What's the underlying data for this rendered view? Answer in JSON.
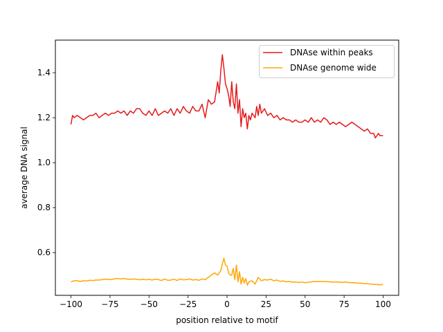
{
  "chart_data": {
    "type": "line",
    "title": "",
    "xlabel": "position relative to motif",
    "ylabel": "average DNA signal",
    "xlim": [
      -110,
      110
    ],
    "ylim": [
      0.41,
      1.545
    ],
    "x_ticks": [
      -100,
      -75,
      -50,
      -25,
      0,
      25,
      50,
      75,
      100
    ],
    "x_tick_labels": [
      "−100",
      "−75",
      "−50",
      "−25",
      "0",
      "25",
      "50",
      "75",
      "100"
    ],
    "y_ticks": [
      0.6,
      0.8,
      1.0,
      1.2,
      1.4
    ],
    "y_tick_labels": [
      "0.6",
      "0.8",
      "1.0",
      "1.2",
      "1.4"
    ],
    "grid": false,
    "legend_position": "top-right",
    "series": [
      {
        "name": "DNAse within peaks",
        "color": "#e41a1c",
        "x": [
          -100,
          -99,
          -98,
          -96,
          -94,
          -92,
          -90,
          -88,
          -86,
          -84,
          -82,
          -80,
          -78,
          -76,
          -74,
          -72,
          -70,
          -68,
          -66,
          -64,
          -62,
          -60,
          -58,
          -56,
          -54,
          -52,
          -50,
          -48,
          -46,
          -44,
          -42,
          -40,
          -38,
          -36,
          -34,
          -32,
          -30,
          -28,
          -26,
          -24,
          -22,
          -20,
          -18,
          -16,
          -14,
          -12,
          -10,
          -8,
          -6,
          -5,
          -4,
          -3,
          -2,
          -1,
          0,
          1,
          2,
          3,
          4,
          5,
          6,
          7,
          8,
          9,
          10,
          11,
          12,
          13,
          14,
          15,
          16,
          17,
          18,
          19,
          20,
          21,
          22,
          24,
          26,
          28,
          30,
          32,
          34,
          36,
          38,
          40,
          42,
          44,
          46,
          48,
          50,
          52,
          54,
          56,
          58,
          60,
          62,
          64,
          66,
          68,
          70,
          72,
          74,
          76,
          78,
          80,
          82,
          84,
          86,
          88,
          90,
          92,
          94,
          95,
          96,
          97,
          98,
          99,
          100
        ],
        "values": [
          1.17,
          1.21,
          1.2,
          1.21,
          1.2,
          1.19,
          1.2,
          1.21,
          1.21,
          1.22,
          1.2,
          1.21,
          1.22,
          1.21,
          1.22,
          1.22,
          1.23,
          1.22,
          1.23,
          1.21,
          1.23,
          1.22,
          1.24,
          1.24,
          1.22,
          1.21,
          1.23,
          1.21,
          1.24,
          1.21,
          1.22,
          1.23,
          1.22,
          1.24,
          1.21,
          1.24,
          1.22,
          1.25,
          1.23,
          1.22,
          1.25,
          1.23,
          1.23,
          1.26,
          1.2,
          1.28,
          1.26,
          1.27,
          1.36,
          1.31,
          1.41,
          1.48,
          1.42,
          1.35,
          1.33,
          1.3,
          1.25,
          1.36,
          1.27,
          1.24,
          1.35,
          1.22,
          1.28,
          1.16,
          1.24,
          1.2,
          1.22,
          1.15,
          1.21,
          1.19,
          1.22,
          1.21,
          1.2,
          1.25,
          1.21,
          1.26,
          1.22,
          1.24,
          1.21,
          1.22,
          1.2,
          1.21,
          1.19,
          1.2,
          1.19,
          1.19,
          1.18,
          1.19,
          1.18,
          1.18,
          1.19,
          1.18,
          1.2,
          1.18,
          1.19,
          1.18,
          1.2,
          1.19,
          1.17,
          1.18,
          1.17,
          1.18,
          1.17,
          1.16,
          1.17,
          1.18,
          1.17,
          1.16,
          1.15,
          1.14,
          1.15,
          1.13,
          1.13,
          1.11,
          1.12,
          1.13,
          1.12,
          1.12,
          1.12
        ]
      },
      {
        "name": "DNAse genome wide",
        "color": "#ffa500",
        "x": [
          -100,
          -98,
          -96,
          -94,
          -92,
          -90,
          -88,
          -86,
          -84,
          -82,
          -80,
          -78,
          -76,
          -74,
          -72,
          -70,
          -68,
          -66,
          -64,
          -62,
          -60,
          -58,
          -56,
          -54,
          -52,
          -50,
          -48,
          -46,
          -44,
          -42,
          -40,
          -38,
          -36,
          -34,
          -32,
          -30,
          -28,
          -26,
          -24,
          -22,
          -20,
          -18,
          -16,
          -14,
          -12,
          -10,
          -8,
          -6,
          -4,
          -3,
          -2,
          -1,
          0,
          1,
          2,
          3,
          4,
          5,
          6,
          7,
          8,
          9,
          10,
          11,
          12,
          13,
          14,
          16,
          18,
          20,
          22,
          24,
          26,
          28,
          30,
          32,
          34,
          36,
          38,
          40,
          42,
          44,
          46,
          48,
          50,
          52,
          54,
          56,
          58,
          60,
          62,
          64,
          66,
          68,
          70,
          72,
          74,
          76,
          78,
          80,
          82,
          84,
          86,
          88,
          90,
          92,
          94,
          96,
          98,
          100
        ],
        "values": [
          0.47,
          0.475,
          0.475,
          0.472,
          0.475,
          0.474,
          0.477,
          0.476,
          0.478,
          0.478,
          0.48,
          0.482,
          0.481,
          0.48,
          0.484,
          0.485,
          0.483,
          0.485,
          0.482,
          0.481,
          0.483,
          0.481,
          0.479,
          0.482,
          0.479,
          0.481,
          0.478,
          0.482,
          0.48,
          0.476,
          0.483,
          0.477,
          0.478,
          0.482,
          0.476,
          0.483,
          0.479,
          0.48,
          0.483,
          0.478,
          0.48,
          0.477,
          0.483,
          0.48,
          0.49,
          0.5,
          0.51,
          0.5,
          0.52,
          0.55,
          0.575,
          0.545,
          0.54,
          0.51,
          0.5,
          0.5,
          0.53,
          0.48,
          0.545,
          0.47,
          0.515,
          0.46,
          0.49,
          0.465,
          0.485,
          0.455,
          0.47,
          0.475,
          0.46,
          0.49,
          0.475,
          0.48,
          0.478,
          0.482,
          0.475,
          0.478,
          0.472,
          0.474,
          0.47,
          0.472,
          0.468,
          0.47,
          0.467,
          0.469,
          0.466,
          0.468,
          0.47,
          0.472,
          0.471,
          0.472,
          0.472,
          0.471,
          0.47,
          0.469,
          0.47,
          0.468,
          0.468,
          0.469,
          0.467,
          0.466,
          0.466,
          0.465,
          0.464,
          0.462,
          0.462,
          0.46,
          0.459,
          0.458,
          0.457,
          0.458
        ]
      }
    ]
  }
}
